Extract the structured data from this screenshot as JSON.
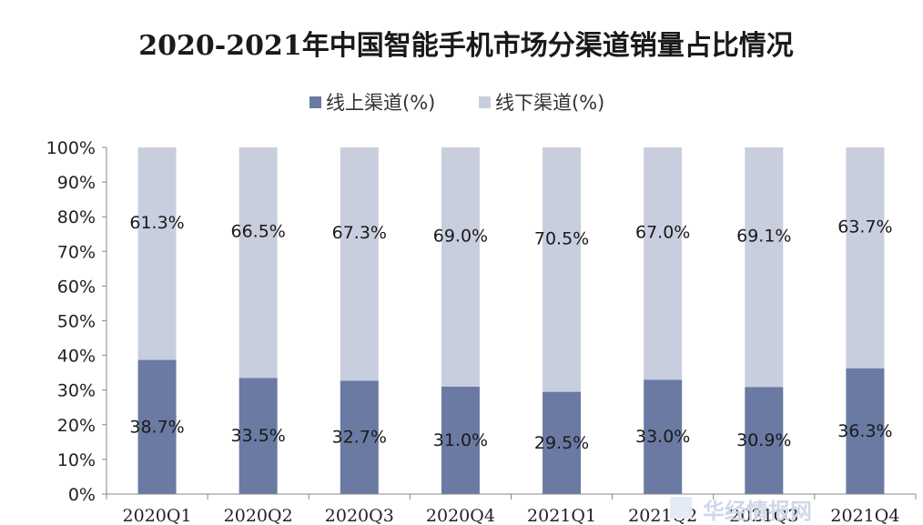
{
  "chart_data": {
    "type": "bar",
    "stacked": true,
    "title": "2020-2021年中国智能手机市场分渠道销量占比情况",
    "categories": [
      "2020Q1",
      "2020Q2",
      "2020Q3",
      "2020Q4",
      "2021Q1",
      "2021Q2",
      "2021Q3",
      "2021Q4"
    ],
    "series": [
      {
        "name": "线上渠道(%)",
        "color": "#6a7aa3",
        "values": [
          38.7,
          33.5,
          32.7,
          31.0,
          29.5,
          33.0,
          30.9,
          36.3
        ],
        "labels": [
          "38.7%",
          "33.5%",
          "32.7%",
          "31.0%",
          "29.5%",
          "33.0%",
          "30.9%",
          "36.3%"
        ]
      },
      {
        "name": "线下渠道(%)",
        "color": "#c9cedf",
        "values": [
          61.3,
          66.5,
          67.3,
          69.0,
          70.5,
          67.0,
          69.1,
          63.7
        ],
        "labels": [
          "61.3%",
          "66.5%",
          "67.3%",
          "69.0%",
          "70.5%",
          "67.0%",
          "69.1%",
          "63.7%"
        ]
      }
    ],
    "ylim": [
      0,
      100
    ],
    "yticks": [
      "0%",
      "10%",
      "20%",
      "30%",
      "40%",
      "50%",
      "60%",
      "70%",
      "80%",
      "90%",
      "100%"
    ],
    "legend": "top",
    "grid": false
  },
  "watermark": "华经情报网"
}
